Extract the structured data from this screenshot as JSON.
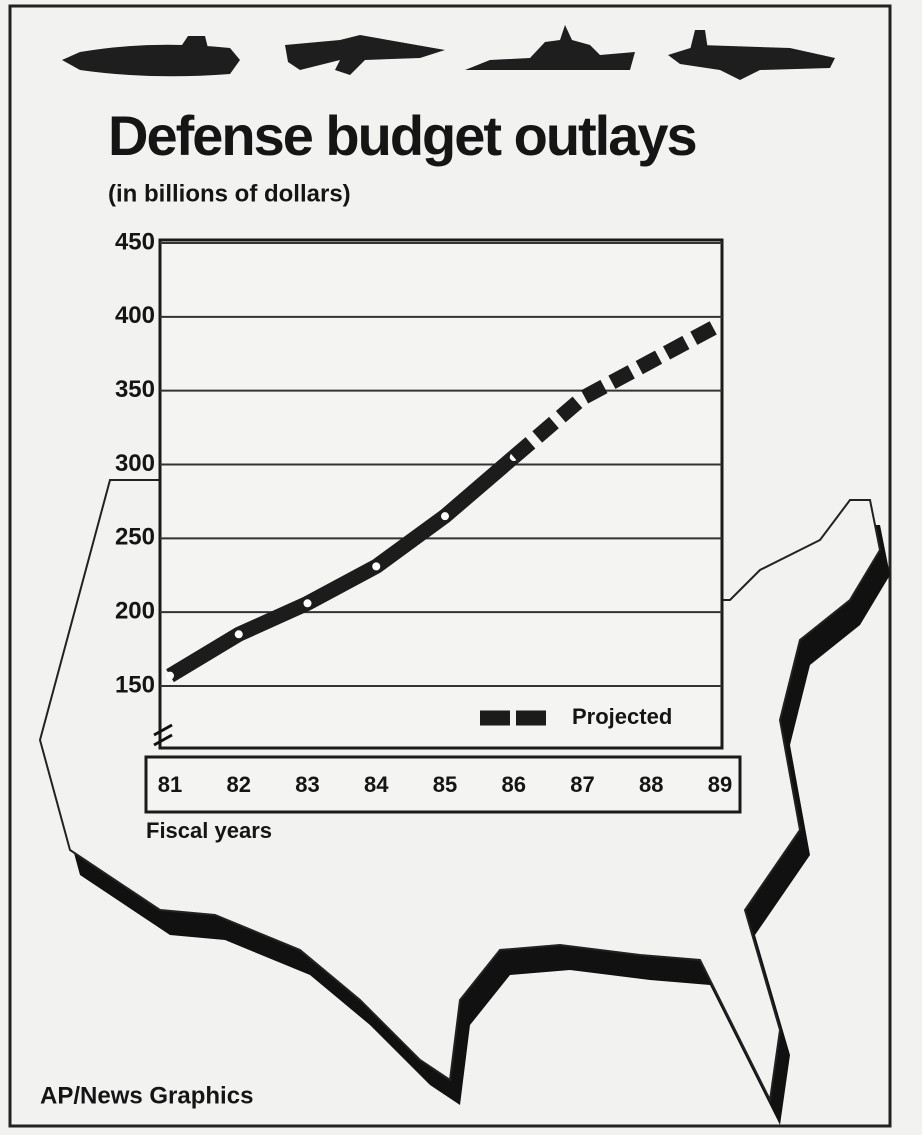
{
  "chart_data": {
    "type": "line",
    "title": "Defense budget outlays",
    "subtitle": "(in billions of dollars)",
    "x_label": "Fiscal years",
    "source": "AP/News Graphics",
    "categories": [
      "81",
      "82",
      "83",
      "84",
      "85",
      "86",
      "87",
      "88",
      "89"
    ],
    "series": [
      {
        "color": "#1c1c1c",
        "dashed": false,
        "markers": true,
        "values": [
          157,
          185,
          206,
          231,
          265,
          305,
          null,
          null,
          null
        ]
      },
      {
        "name": "Projected",
        "color": "#1c1c1c",
        "dashed": true,
        "markers": false,
        "values": [
          null,
          null,
          null,
          null,
          null,
          305,
          345,
          370,
          395
        ]
      }
    ],
    "ylim": [
      108,
      450
    ],
    "yticks": [
      150,
      200,
      250,
      300,
      350,
      400,
      450
    ],
    "grid": true,
    "legend": "lower right"
  }
}
